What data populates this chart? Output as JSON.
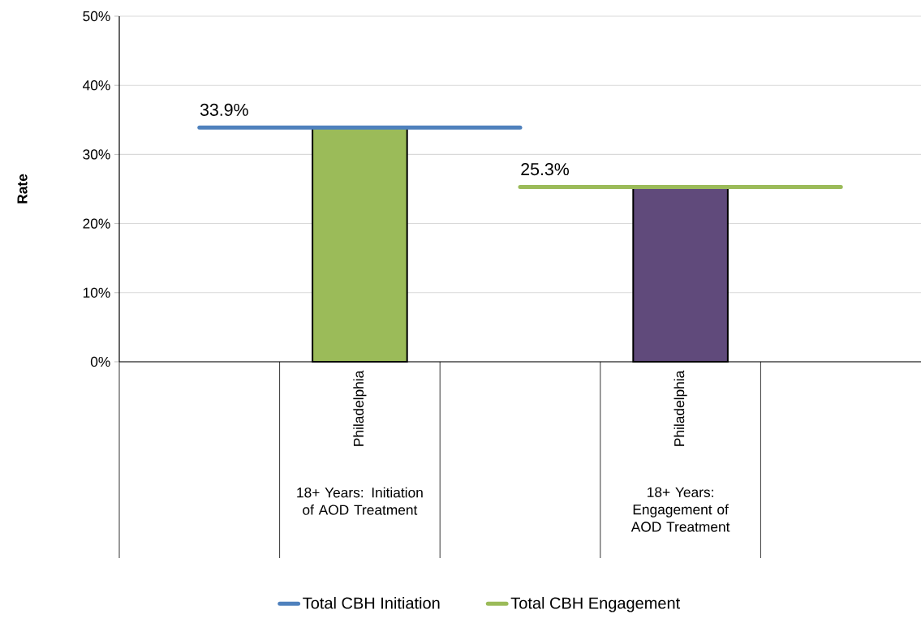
{
  "chart_data": {
    "type": "bar",
    "ylabel": "Rate",
    "categories": [
      null,
      "Philadelphia",
      null,
      "Philadelphia",
      null
    ],
    "series": [
      {
        "colors": [
          "#9bbb59",
          "#9bbb59",
          "#9bbb59",
          "#604a7b",
          "#9bbb59"
        ],
        "values": [
          null,
          33.9,
          null,
          25.3,
          null
        ]
      },
      {
        "type": "line",
        "name": "Total CBH Initiation",
        "color": "#4f81bd",
        "values": [
          33.9,
          33.9,
          33.9,
          null,
          null
        ],
        "value_labels": [
          "33.9%",
          null,
          null,
          null,
          null
        ]
      },
      {
        "type": "line",
        "name": "Total CBH Engagement",
        "color": "#9bbb59",
        "values": [
          null,
          null,
          25.3,
          25.3,
          25.3
        ],
        "value_labels": [
          null,
          null,
          "25.3%",
          null,
          null
        ]
      }
    ],
    "ylim": [
      0,
      50
    ],
    "yticks": [
      {
        "value": 0,
        "label": "0%"
      },
      {
        "value": 10,
        "label": "10%"
      },
      {
        "value": 20,
        "label": "20%"
      },
      {
        "value": 30,
        "label": "30%"
      },
      {
        "value": 40,
        "label": "40%"
      },
      {
        "value": 50,
        "label": "50%"
      }
    ],
    "grid": "y",
    "legend": "bottom",
    "annotations": [
      "18+ Years: Initiation of AOD Treatment",
      "18+ Years: Engagement of AOD Treatment"
    ]
  }
}
